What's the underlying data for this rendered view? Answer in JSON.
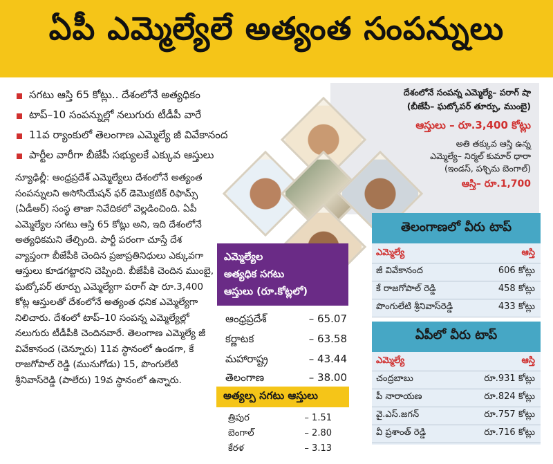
{
  "headline": "ఏపీ ఎమ్మెల్యేలే అత్యంత సంపన్నులు",
  "bullets": [
    "సగటు ఆస్తి 65 కోట్లు.. దేశంలోనే అత్యధికం",
    "టాప్‌–10 సంపన్నుల్లో నలుగురు టీడీపీ వారే",
    "11వ ర్యాంకులో తెలంగాణ ఎమ్మెల్యే జీ వివేకానంద",
    "పార్టీల వారీగా బీజేపీ సభ్యులకే ఎక్కువ ఆస్తులు"
  ],
  "body_paragraph": "న్యూఢిల్లీ: ఆంధ్రప్రదేశ్‌ ఎమ్మెల్యేలు దేశంలోనే అత్యంత సంపన్నులని అసోసియేషన్‌ ఫర్‌ డెమొక్రటిక్‌ రిఫామ్స్‌ (ఏడీఆర్‌) సంస్థ తాజా నివేదికలో వెల్లడించింది. ఏపీ ఎమ్మెల్యేల సగటు ఆస్తి 65 కోట్లు అని, ఇది దేశంలోనే అత్యధికమని తేల్చింది. పార్టీ పరంగా చూస్తే దేశ వ్యాప్తంగా బీజేపీకి చెందిన ప్రజాప్రతినిధులు ఎక్కువగా ఆస్తులు కూడగట్టారని చెప్పింది. బీజేపీకి చెందిన ముంబై, ఘట్కోపర్‌ తూర్పు ఎమ్మెల్యేగా పరాగ్‌ షా రూ.3,400 కోట్ల ఆస్తులతో దేశంలోనే అత్యంత ధనిక ఎమ్మెల్యేగా నిలిచారు. దేశంలో టాప్‌–10 సంపన్న ఎమ్మెల్యేల్లో నలుగురు టీడీపీకి చెందినవారే. తెలంగాణ ఎమ్మెల్యే జీ వివేకానంద (చెన్నూరు) 11వ స్థానంలో ఉండగా, కే రాజగోపాల్‌ రెడ్డి (మునుగోడు) 15, పొంగులేటి శ్రీనివాస్‌రెడ్డి (పాలేరు) 19వ స్థానంలో ఉన్నారు.",
  "richest_panel": {
    "line1": "దేశంలోనే సంపన్న ఎమ్మెల్యే– పరాగ్‌ షా",
    "line2": "(బీజేపీ– ఘట్కోపర్‌ తూర్పు, ముంబై)",
    "assets": "ఆస్తులు – రూ.3,400 కోట్లు",
    "line4": "అతి తక్కువ ఆస్తి ఉన్న",
    "line5": "ఎమ్మెల్యే– నిర్మల్‌ కుమార్‌ ధారా",
    "line6": "(ఇండస్‌, పశ్చిమ బెంగాల్‌)",
    "low_assets": "ఆస్తి– రూ.1,700"
  },
  "avg_box": {
    "title_lines": [
      "ఎమ్మెల్యేల",
      "అత్యధిక సగటు",
      "ఆస్తులు (రూ.కోట్లలో)"
    ],
    "rows": [
      {
        "state": "ఆంధ్రప్రదేశ్‌",
        "value": "– 65.07"
      },
      {
        "state": "కర్ణాటక",
        "value": "– 63.58"
      },
      {
        "state": "మహారాష్ట్ర",
        "value": "– 43.44"
      },
      {
        "state": "తెలంగాణ",
        "value": "– 38.00"
      }
    ],
    "low_title": "అత్యల్ప సగటు ఆస్తులు",
    "low_rows": [
      {
        "state": "త్రిపుర",
        "value": "– 1.51"
      },
      {
        "state": "బెంగాల్‌",
        "value": "– 2.80"
      },
      {
        "state": "కేరళ",
        "value": "– 3.13"
      }
    ]
  },
  "telangana_table": {
    "title": "తెలంగాణలో వీరు టాప్‌",
    "col1": "ఎమ్మెల్యే",
    "col2": "ఆస్తి",
    "rows": [
      {
        "name": "జీ వివేకానంద",
        "asset": "606 కోట్లు"
      },
      {
        "name": "కే రాజగోపాల్‌ రెడ్డి",
        "asset": "458 కోట్లు"
      },
      {
        "name": "పొంగులేటి శ్రీనివాస్‌రెడ్డి",
        "asset": "433 కోట్లు"
      }
    ]
  },
  "ap_table": {
    "title": "ఏపీలో వీరు టాప్‌",
    "col1": "ఎమ్మెల్యే",
    "col2": "ఆస్తి",
    "rows": [
      {
        "name": "చంద్రబాబు",
        "asset": "రూ.931 కోట్లు"
      },
      {
        "name": "పీ నారాయణ",
        "asset": "రూ.824 కోట్లు"
      },
      {
        "name": "వై.ఎస్‌.జగన్‌",
        "asset": "రూ.757 కోట్లు"
      },
      {
        "name": "వీ ప్రశాంత్‌ రెడ్డి",
        "asset": "రూ.716 కోట్లు"
      }
    ]
  },
  "colors": {
    "headline_bg": "#f5c518",
    "accent_red": "#d0302f",
    "purple": "#6a2b86",
    "table_header": "#46a7c5"
  }
}
